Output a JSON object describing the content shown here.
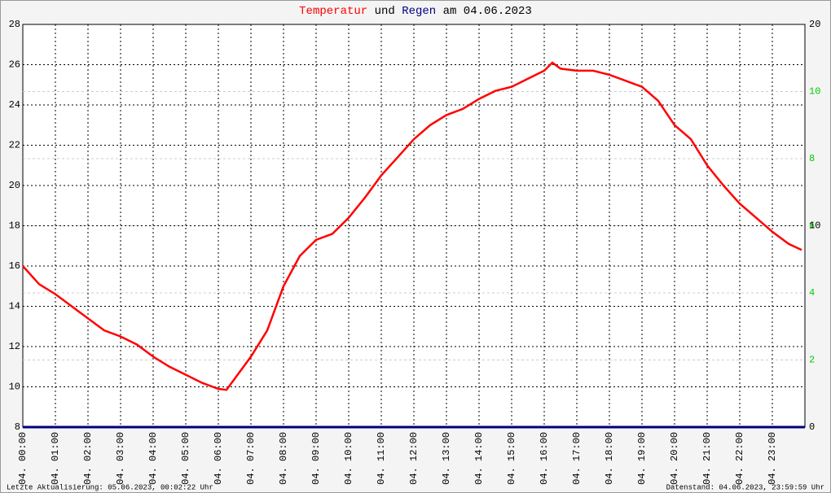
{
  "chart_data": {
    "type": "line",
    "title": [
      {
        "text": "Temperatur",
        "color": "#ff0000"
      },
      {
        "text": " und ",
        "color": "#000000"
      },
      {
        "text": "Regen",
        "color": "#000080"
      },
      {
        "text": " am 04.06.2023",
        "color": "#000000"
      }
    ],
    "footer_left": "Letzte Aktualisierung: 05.06.2023, 00:02:22 Uhr",
    "footer_right": "Datenstand: 04.06.2023, 23:59:59 Uhr",
    "xlim": [
      0,
      24
    ],
    "xticks": [
      {
        "value": 0,
        "label": "04. 00:00"
      },
      {
        "value": 1,
        "label": "04. 01:00"
      },
      {
        "value": 2,
        "label": "04. 02:00"
      },
      {
        "value": 3,
        "label": "04. 03:00"
      },
      {
        "value": 4,
        "label": "04. 04:00"
      },
      {
        "value": 5,
        "label": "04. 05:00"
      },
      {
        "value": 6,
        "label": "04. 06:00"
      },
      {
        "value": 7,
        "label": "04. 07:00"
      },
      {
        "value": 8,
        "label": "04. 08:00"
      },
      {
        "value": 9,
        "label": "04. 09:00"
      },
      {
        "value": 10,
        "label": "04. 10:00"
      },
      {
        "value": 11,
        "label": "04. 11:00"
      },
      {
        "value": 12,
        "label": "04. 12:00"
      },
      {
        "value": 13,
        "label": "04. 13:00"
      },
      {
        "value": 14,
        "label": "04. 14:00"
      },
      {
        "value": 15,
        "label": "04. 15:00"
      },
      {
        "value": 16,
        "label": "04. 16:00"
      },
      {
        "value": 17,
        "label": "04. 17:00"
      },
      {
        "value": 18,
        "label": "04. 18:00"
      },
      {
        "value": 19,
        "label": "04. 19:00"
      },
      {
        "value": 20,
        "label": "04. 20:00"
      },
      {
        "value": 21,
        "label": "04. 21:00"
      },
      {
        "value": 22,
        "label": "04. 22:00"
      },
      {
        "value": 23,
        "label": "04. 23:00"
      }
    ],
    "ylim": [
      8,
      28
    ],
    "yticks": [
      8,
      10,
      12,
      14,
      16,
      18,
      20,
      22,
      24,
      26,
      28
    ],
    "y2lim": [
      0,
      20
    ],
    "y2ticks": [
      0,
      10,
      20
    ],
    "y3lim": [
      0,
      12
    ],
    "y3ticks": [
      2,
      4,
      6,
      8,
      10
    ],
    "y3color": "#00cc00",
    "grid": true,
    "series": [
      {
        "name": "Temperatur",
        "color": "#ff0000",
        "axis": "y",
        "x": [
          0,
          0.5,
          1,
          1.5,
          2,
          2.5,
          3,
          3.5,
          4,
          4.5,
          5,
          5.5,
          6,
          6.25,
          6.5,
          7,
          7.5,
          8,
          8.5,
          9,
          9.5,
          10,
          10.5,
          11,
          11.5,
          12,
          12.5,
          13,
          13.5,
          14,
          14.5,
          15,
          15.5,
          16,
          16.25,
          16.5,
          17,
          17.5,
          18,
          18.5,
          19,
          19.5,
          20,
          20.5,
          21,
          21.5,
          22,
          22.5,
          23,
          23.5,
          23.9
        ],
        "values": [
          16.0,
          15.1,
          14.6,
          14.0,
          13.4,
          12.8,
          12.5,
          12.1,
          11.5,
          11.0,
          10.6,
          10.2,
          9.9,
          9.85,
          10.4,
          11.5,
          12.8,
          15.0,
          16.5,
          17.3,
          17.6,
          18.4,
          19.4,
          20.5,
          21.4,
          22.3,
          23.0,
          23.5,
          23.8,
          24.3,
          24.7,
          24.9,
          25.3,
          25.7,
          26.1,
          25.8,
          25.7,
          25.7,
          25.5,
          25.2,
          24.9,
          24.2,
          23.0,
          22.3,
          21.0,
          20.0,
          19.1,
          18.4,
          17.7,
          17.1,
          16.8
        ]
      },
      {
        "name": "Regen",
        "color": "#000080",
        "axis": "y2",
        "x": [
          0,
          24
        ],
        "values": [
          0,
          0
        ]
      }
    ]
  }
}
